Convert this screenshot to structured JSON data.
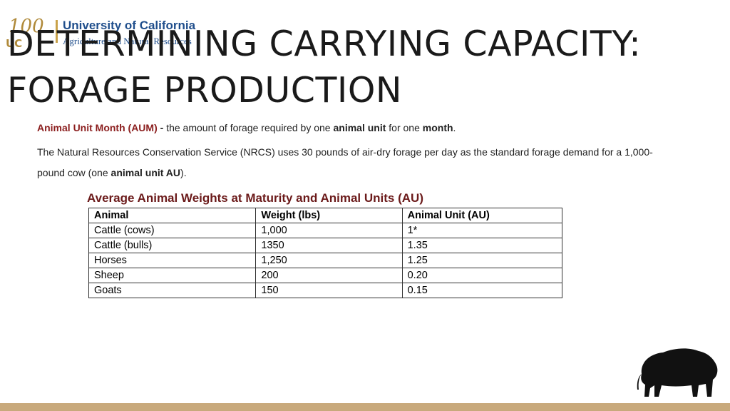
{
  "logo": {
    "years": "100",
    "mark": "UC",
    "university": "University of California",
    "division": "Agriculture and Natural Resources"
  },
  "title": [
    "DETERMINING CARRYING CAPACITY:",
    "FORAGE PRODUCTION"
  ],
  "definition": {
    "term": "Animal Unit Month (AUM)",
    "dash": " - ",
    "text1": "the amount of forage required by one ",
    "bold1": "animal unit",
    "text2": " for one ",
    "bold2": "month",
    "text3": "."
  },
  "standard": {
    "text1": "The Natural Resources Conservation Service (NRCS) uses 30 pounds of air-dry forage per day as the standard forage demand for a 1,000- pound cow (one ",
    "bold1": "animal unit AU",
    "text2": ")."
  },
  "table": {
    "title": "Average Animal Weights at Maturity and Animal Units (AU)",
    "header": [
      "Animal",
      "Weight (lbs)",
      "Animal Unit (AU)"
    ],
    "rows": [
      [
        "Cattle (cows)",
        "1,000",
        "1*"
      ],
      [
        "Cattle (bulls)",
        "1350",
        "1.35"
      ],
      [
        "Horses",
        "1,250",
        "1.25"
      ],
      [
        "Sheep",
        "200",
        "0.20"
      ],
      [
        "Goats",
        "150",
        "0.15"
      ]
    ]
  }
}
